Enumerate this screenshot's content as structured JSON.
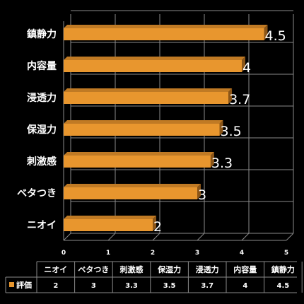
{
  "chart_data": {
    "type": "bar",
    "orientation": "horizontal",
    "categories": [
      "ニオイ",
      "ベタつき",
      "刺激感",
      "保湿力",
      "浸透力",
      "内容量",
      "鎮静力"
    ],
    "series": [
      {
        "name": "評価",
        "values": [
          2,
          3,
          3.3,
          3.5,
          3.7,
          4,
          4.5
        ],
        "color": "#e8962e"
      }
    ],
    "value_labels": [
      "2",
      "3",
      "3.3",
      "3.5",
      "3.7",
      "4",
      "4.5"
    ],
    "xlim": [
      0,
      5
    ],
    "x_ticks": [
      "0",
      "1",
      "2",
      "3",
      "4",
      "5"
    ],
    "grid": true,
    "data_table": true,
    "legend_marker": "■"
  },
  "colors": {
    "background": "#000000",
    "bar": "#e8962e",
    "grid": "#8a8a8a",
    "text": "#ffffff"
  }
}
